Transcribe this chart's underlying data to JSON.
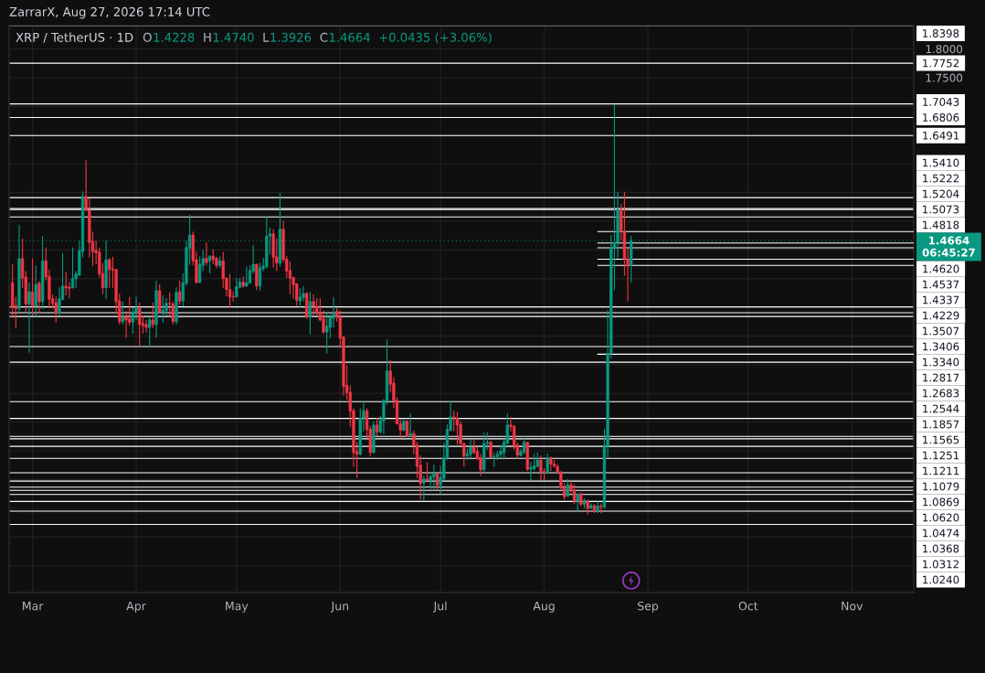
{
  "chart_data": {
    "type": "candlestick",
    "title": "XRP / TetherUS · 1D",
    "annotations": [
      "ZarrarX, Aug 27, 2026 17:14 UTC",
      "O1.4228",
      "H1.4740",
      "L1.3926",
      "C1.4664",
      "+0.0435 (+3.06%)"
    ],
    "x": [
      "2026-02-23",
      "2026-02-24",
      "2026-02-25",
      "2026-02-26",
      "2026-02-27",
      "2026-02-28",
      "2026-03-01",
      "2026-03-02",
      "2026-03-03",
      "2026-03-04",
      "2026-03-05",
      "2026-03-06",
      "2026-03-07",
      "2026-03-08",
      "2026-03-09",
      "2026-03-10",
      "2026-03-11",
      "2026-03-12",
      "2026-03-13",
      "2026-03-14",
      "2026-03-15",
      "2026-03-16",
      "2026-03-17",
      "2026-03-18",
      "2026-03-19",
      "2026-03-20",
      "2026-03-21",
      "2026-03-22",
      "2026-03-23",
      "2026-03-24",
      "2026-03-25",
      "2026-03-26",
      "2026-03-27",
      "2026-03-28",
      "2026-03-29",
      "2026-03-30",
      "2026-03-31",
      "2026-04-01",
      "2026-04-02",
      "2026-04-03",
      "2026-04-04",
      "2026-04-05",
      "2026-04-06",
      "2026-04-07",
      "2026-04-08",
      "2026-04-09",
      "2026-04-10",
      "2026-04-11",
      "2026-04-12",
      "2026-04-13",
      "2026-04-14",
      "2026-04-15",
      "2026-04-16",
      "2026-04-17",
      "2026-04-18",
      "2026-04-19",
      "2026-04-20",
      "2026-04-21",
      "2026-04-22",
      "2026-04-23",
      "2026-04-24",
      "2026-04-25",
      "2026-04-26",
      "2026-04-27",
      "2026-04-28",
      "2026-04-29",
      "2026-04-30",
      "2026-05-01",
      "2026-05-02",
      "2026-05-03",
      "2026-05-04",
      "2026-05-05",
      "2026-05-06",
      "2026-05-07",
      "2026-05-08",
      "2026-05-09",
      "2026-05-10",
      "2026-05-11",
      "2026-05-12",
      "2026-05-13",
      "2026-05-14",
      "2026-05-15",
      "2026-05-16",
      "2026-05-17",
      "2026-05-18",
      "2026-05-19",
      "2026-05-20",
      "2026-05-21",
      "2026-05-22",
      "2026-05-23",
      "2026-05-24",
      "2026-05-25",
      "2026-05-26",
      "2026-05-27",
      "2026-05-28",
      "2026-05-29",
      "2026-05-30",
      "2026-05-31",
      "2026-06-01",
      "2026-06-02",
      "2026-06-03",
      "2026-06-04",
      "2026-06-05",
      "2026-06-06",
      "2026-06-07",
      "2026-06-08",
      "2026-06-09",
      "2026-06-10",
      "2026-06-11",
      "2026-06-12",
      "2026-06-13",
      "2026-06-14",
      "2026-06-15",
      "2026-06-16",
      "2026-06-17",
      "2026-06-18",
      "2026-06-19",
      "2026-06-20",
      "2026-06-21",
      "2026-06-22",
      "2026-06-23",
      "2026-06-24",
      "2026-06-25",
      "2026-06-26",
      "2026-06-27",
      "2026-06-28",
      "2026-06-29",
      "2026-06-30",
      "2026-07-01",
      "2026-07-02",
      "2026-07-03",
      "2026-07-04",
      "2026-07-05",
      "2026-07-06",
      "2026-07-07",
      "2026-07-08",
      "2026-07-09",
      "2026-07-10",
      "2026-07-11",
      "2026-07-12",
      "2026-07-13",
      "2026-07-14",
      "2026-07-15",
      "2026-07-16",
      "2026-07-17",
      "2026-07-18",
      "2026-07-19",
      "2026-07-20",
      "2026-07-21",
      "2026-07-22",
      "2026-07-23",
      "2026-07-24",
      "2026-07-25",
      "2026-07-26",
      "2026-07-27",
      "2026-07-28",
      "2026-07-29",
      "2026-07-30",
      "2026-07-31",
      "2026-08-01",
      "2026-08-02",
      "2026-08-03",
      "2026-08-04",
      "2026-08-05",
      "2026-08-06",
      "2026-08-07",
      "2026-08-08",
      "2026-08-09",
      "2026-08-10",
      "2026-08-11",
      "2026-08-12",
      "2026-08-13",
      "2026-08-14",
      "2026-08-15",
      "2026-08-16",
      "2026-08-17",
      "2026-08-18",
      "2026-08-19",
      "2026-08-20",
      "2026-08-21",
      "2026-08-22",
      "2026-08-23",
      "2026-08-24",
      "2026-08-25",
      "2026-08-26",
      "2026-08-27"
    ],
    "ohlc": [
      [
        1.393,
        1.425,
        1.332,
        1.351
      ],
      [
        1.353,
        1.368,
        1.314,
        1.348
      ],
      [
        1.348,
        1.494,
        1.341,
        1.435
      ],
      [
        1.435,
        1.47,
        1.384,
        1.401
      ],
      [
        1.403,
        1.413,
        1.34,
        1.356
      ],
      [
        1.356,
        1.393,
        1.271,
        1.377
      ],
      [
        1.377,
        1.435,
        1.336,
        1.352
      ],
      [
        1.352,
        1.423,
        1.334,
        1.39
      ],
      [
        1.392,
        1.396,
        1.339,
        1.36
      ],
      [
        1.36,
        1.474,
        1.347,
        1.431
      ],
      [
        1.431,
        1.454,
        1.397,
        1.403
      ],
      [
        1.404,
        1.416,
        1.348,
        1.364
      ],
      [
        1.365,
        1.373,
        1.348,
        1.357
      ],
      [
        1.358,
        1.369,
        1.324,
        1.34
      ],
      [
        1.34,
        1.385,
        1.335,
        1.365
      ],
      [
        1.364,
        1.444,
        1.362,
        1.387
      ],
      [
        1.387,
        1.412,
        1.371,
        1.384
      ],
      [
        1.385,
        1.394,
        1.366,
        1.383
      ],
      [
        1.384,
        1.454,
        1.383,
        1.4
      ],
      [
        1.4,
        1.413,
        1.384,
        1.408
      ],
      [
        1.406,
        1.466,
        1.405,
        1.449
      ],
      [
        1.447,
        1.552,
        1.437,
        1.543
      ],
      [
        1.543,
        1.607,
        1.517,
        1.519
      ],
      [
        1.519,
        1.54,
        1.437,
        1.463
      ],
      [
        1.465,
        1.482,
        1.422,
        1.447
      ],
      [
        1.449,
        1.466,
        1.425,
        1.445
      ],
      [
        1.446,
        1.454,
        1.402,
        1.408
      ],
      [
        1.409,
        1.427,
        1.373,
        1.384
      ],
      [
        1.384,
        1.466,
        1.364,
        1.433
      ],
      [
        1.433,
        1.436,
        1.384,
        1.416
      ],
      [
        1.417,
        1.438,
        1.384,
        1.415
      ],
      [
        1.416,
        1.417,
        1.338,
        1.36
      ],
      [
        1.361,
        1.374,
        1.32,
        1.325
      ],
      [
        1.325,
        1.36,
        1.32,
        1.333
      ],
      [
        1.333,
        1.344,
        1.297,
        1.328
      ],
      [
        1.33,
        1.368,
        1.318,
        1.324
      ],
      [
        1.324,
        1.35,
        1.304,
        1.342
      ],
      [
        1.342,
        1.369,
        1.328,
        1.349
      ],
      [
        1.349,
        1.358,
        1.283,
        1.32
      ],
      [
        1.322,
        1.336,
        1.304,
        1.318
      ],
      [
        1.32,
        1.328,
        1.306,
        1.315
      ],
      [
        1.315,
        1.334,
        1.28,
        1.328
      ],
      [
        1.328,
        1.358,
        1.314,
        1.32
      ],
      [
        1.32,
        1.396,
        1.297,
        1.379
      ],
      [
        1.379,
        1.39,
        1.339,
        1.342
      ],
      [
        1.342,
        1.371,
        1.323,
        1.345
      ],
      [
        1.344,
        1.366,
        1.336,
        1.357
      ],
      [
        1.357,
        1.376,
        1.336,
        1.356
      ],
      [
        1.356,
        1.36,
        1.32,
        1.325
      ],
      [
        1.325,
        1.385,
        1.32,
        1.376
      ],
      [
        1.377,
        1.396,
        1.354,
        1.361
      ],
      [
        1.361,
        1.409,
        1.352,
        1.393
      ],
      [
        1.392,
        1.466,
        1.387,
        1.454
      ],
      [
        1.453,
        1.511,
        1.424,
        1.476
      ],
      [
        1.476,
        1.482,
        1.423,
        1.431
      ],
      [
        1.433,
        1.447,
        1.392,
        1.393
      ],
      [
        1.393,
        1.439,
        1.393,
        1.425
      ],
      [
        1.423,
        1.45,
        1.413,
        1.435
      ],
      [
        1.435,
        1.463,
        1.423,
        1.428
      ],
      [
        1.431,
        1.441,
        1.409,
        1.439
      ],
      [
        1.439,
        1.451,
        1.425,
        1.433
      ],
      [
        1.435,
        1.438,
        1.418,
        1.423
      ],
      [
        1.423,
        1.438,
        1.419,
        1.431
      ],
      [
        1.431,
        1.447,
        1.384,
        1.4
      ],
      [
        1.401,
        1.402,
        1.369,
        1.381
      ],
      [
        1.381,
        1.408,
        1.348,
        1.368
      ],
      [
        1.369,
        1.378,
        1.36,
        1.368
      ],
      [
        1.368,
        1.401,
        1.368,
        1.386
      ],
      [
        1.385,
        1.401,
        1.383,
        1.394
      ],
      [
        1.394,
        1.404,
        1.384,
        1.387
      ],
      [
        1.387,
        1.421,
        1.386,
        1.393
      ],
      [
        1.392,
        1.423,
        1.392,
        1.414
      ],
      [
        1.413,
        1.458,
        1.409,
        1.425
      ],
      [
        1.425,
        1.426,
        1.38,
        1.387
      ],
      [
        1.387,
        1.428,
        1.379,
        1.419
      ],
      [
        1.417,
        1.436,
        1.413,
        1.422
      ],
      [
        1.421,
        1.509,
        1.418,
        1.474
      ],
      [
        1.474,
        1.489,
        1.442,
        1.478
      ],
      [
        1.478,
        1.486,
        1.419,
        1.437
      ],
      [
        1.438,
        1.47,
        1.413,
        1.427
      ],
      [
        1.427,
        1.549,
        1.421,
        1.486
      ],
      [
        1.486,
        1.501,
        1.429,
        1.433
      ],
      [
        1.434,
        1.439,
        1.401,
        1.413
      ],
      [
        1.414,
        1.43,
        1.373,
        1.401
      ],
      [
        1.402,
        1.403,
        1.365,
        1.389
      ],
      [
        1.391,
        1.392,
        1.353,
        1.362
      ],
      [
        1.361,
        1.383,
        1.349,
        1.368
      ],
      [
        1.367,
        1.387,
        1.36,
        1.374
      ],
      [
        1.374,
        1.377,
        1.33,
        1.333
      ],
      [
        1.333,
        1.377,
        1.303,
        1.36
      ],
      [
        1.36,
        1.373,
        1.336,
        1.352
      ],
      [
        1.352,
        1.366,
        1.336,
        1.341
      ],
      [
        1.341,
        1.366,
        1.326,
        1.328
      ],
      [
        1.33,
        1.344,
        1.304,
        1.307
      ],
      [
        1.307,
        1.341,
        1.269,
        1.317
      ],
      [
        1.315,
        1.338,
        1.296,
        1.332
      ],
      [
        1.331,
        1.368,
        1.315,
        1.341
      ],
      [
        1.343,
        1.349,
        1.325,
        1.333
      ],
      [
        1.333,
        1.344,
        1.282,
        1.296
      ],
      [
        1.298,
        1.3,
        1.196,
        1.212
      ],
      [
        1.214,
        1.249,
        1.189,
        1.201
      ],
      [
        1.202,
        1.214,
        1.142,
        1.169
      ],
      [
        1.17,
        1.174,
        1.072,
        1.097
      ],
      [
        1.099,
        1.116,
        1.053,
        1.094
      ],
      [
        1.094,
        1.174,
        1.092,
        1.157
      ],
      [
        1.157,
        1.187,
        1.134,
        1.17
      ],
      [
        1.17,
        1.174,
        1.122,
        1.137
      ],
      [
        1.138,
        1.143,
        1.09,
        1.097
      ],
      [
        1.097,
        1.152,
        1.095,
        1.145
      ],
      [
        1.145,
        1.158,
        1.126,
        1.133
      ],
      [
        1.133,
        1.161,
        1.13,
        1.153
      ],
      [
        1.152,
        1.19,
        1.129,
        1.188
      ],
      [
        1.187,
        1.294,
        1.18,
        1.239
      ],
      [
        1.239,
        1.258,
        1.203,
        1.216
      ],
      [
        1.218,
        1.228,
        1.174,
        1.187
      ],
      [
        1.188,
        1.194,
        1.146,
        1.147
      ],
      [
        1.147,
        1.155,
        1.122,
        1.136
      ],
      [
        1.136,
        1.155,
        1.134,
        1.152
      ],
      [
        1.152,
        1.153,
        1.124,
        1.125
      ],
      [
        1.125,
        1.165,
        1.124,
        1.13
      ],
      [
        1.13,
        1.135,
        1.094,
        1.109
      ],
      [
        1.11,
        1.116,
        1.053,
        1.073
      ],
      [
        1.075,
        1.092,
        1.015,
        1.043
      ],
      [
        1.044,
        1.057,
        1.012,
        1.051
      ],
      [
        1.051,
        1.08,
        1.047,
        1.048
      ],
      [
        1.048,
        1.063,
        1.033,
        1.055
      ],
      [
        1.055,
        1.076,
        1.031,
        1.06
      ],
      [
        1.06,
        1.061,
        1.031,
        1.04
      ],
      [
        1.04,
        1.074,
        1.024,
        1.054
      ],
      [
        1.052,
        1.115,
        1.049,
        1.088
      ],
      [
        1.087,
        1.146,
        1.084,
        1.137
      ],
      [
        1.136,
        1.187,
        1.134,
        1.159
      ],
      [
        1.159,
        1.17,
        1.134,
        1.157
      ],
      [
        1.157,
        1.168,
        1.111,
        1.145
      ],
      [
        1.146,
        1.152,
        1.109,
        1.113
      ],
      [
        1.113,
        1.115,
        1.072,
        1.091
      ],
      [
        1.091,
        1.104,
        1.084,
        1.095
      ],
      [
        1.094,
        1.12,
        1.088,
        1.106
      ],
      [
        1.106,
        1.121,
        1.094,
        1.097
      ],
      [
        1.099,
        1.107,
        1.084,
        1.086
      ],
      [
        1.088,
        1.095,
        1.056,
        1.067
      ],
      [
        1.067,
        1.132,
        1.063,
        1.113
      ],
      [
        1.113,
        1.132,
        1.102,
        1.115
      ],
      [
        1.115,
        1.118,
        1.088,
        1.089
      ],
      [
        1.088,
        1.097,
        1.072,
        1.09
      ],
      [
        1.09,
        1.1,
        1.084,
        1.094
      ],
      [
        1.094,
        1.11,
        1.089,
        1.099
      ],
      [
        1.097,
        1.122,
        1.085,
        1.115
      ],
      [
        1.113,
        1.165,
        1.112,
        1.145
      ],
      [
        1.145,
        1.159,
        1.134,
        1.142
      ],
      [
        1.143,
        1.145,
        1.102,
        1.109
      ],
      [
        1.11,
        1.115,
        1.086,
        1.093
      ],
      [
        1.092,
        1.104,
        1.09,
        1.099
      ],
      [
        1.098,
        1.122,
        1.094,
        1.115
      ],
      [
        1.115,
        1.116,
        1.065,
        1.068
      ],
      [
        1.068,
        1.081,
        1.047,
        1.071
      ],
      [
        1.069,
        1.095,
        1.065,
        1.074
      ],
      [
        1.073,
        1.097,
        1.071,
        1.084
      ],
      [
        1.084,
        1.092,
        1.049,
        1.064
      ],
      [
        1.064,
        1.07,
        1.049,
        1.063
      ],
      [
        1.061,
        1.095,
        1.06,
        1.088
      ],
      [
        1.088,
        1.09,
        1.065,
        1.077
      ],
      [
        1.077,
        1.084,
        1.071,
        1.073
      ],
      [
        1.073,
        1.077,
        1.06,
        1.063
      ],
      [
        1.063,
        1.065,
        1.033,
        1.036
      ],
      [
        1.036,
        1.044,
        1.015,
        1.02
      ],
      [
        1.021,
        1.051,
        1.02,
        1.041
      ],
      [
        1.041,
        1.048,
        1.026,
        1.031
      ],
      [
        1.031,
        1.042,
        1.007,
        1.012
      ],
      [
        1.012,
        1.026,
        0.995,
        1.025
      ],
      [
        1.025,
        1.028,
        1.004,
        1.007
      ],
      [
        1.007,
        1.017,
        1.0,
        1.012
      ],
      [
        1.012,
        1.015,
        0.989,
        1.0
      ],
      [
        1.0,
        1.009,
        0.999,
        1.005
      ],
      [
        1.005,
        1.007,
        0.992,
        0.995
      ],
      [
        0.995,
        1.012,
        0.991,
        1.004
      ],
      [
        1.004,
        1.008,
        0.991,
        1.002
      ],
      [
        1.002,
        1.138,
        0.999,
        1.109
      ],
      [
        1.108,
        1.345,
        1.089,
        1.269
      ],
      [
        1.269,
        1.476,
        1.26,
        1.455
      ],
      [
        1.454,
        1.704,
        1.38,
        1.463
      ],
      [
        1.463,
        1.551,
        1.435,
        1.52
      ],
      [
        1.52,
        1.53,
        1.466,
        1.482
      ],
      [
        1.482,
        1.551,
        1.405,
        1.434
      ],
      [
        1.434,
        1.453,
        1.36,
        1.4228
      ],
      [
        1.4228,
        1.474,
        1.3926,
        1.4664
      ]
    ],
    "colors": [
      "#f23645",
      "#f23645",
      "#089981",
      "#f23645",
      "#f23645",
      "#089981",
      "#f23645",
      "#089981",
      "#f23645",
      "#089981",
      "#f23645",
      "#f23645",
      "#f23645",
      "#f23645",
      "#089981",
      "#089981",
      "#f23645",
      "#f23645",
      "#089981",
      "#089981",
      "#089981",
      "#089981",
      "#f23645",
      "#f23645",
      "#f23645",
      "#f23645",
      "#f23645",
      "#f23645",
      "#089981",
      "#f23645",
      "#f23645",
      "#f23645",
      "#f23645",
      "#089981",
      "#f23645",
      "#f23645",
      "#089981",
      "#089981",
      "#f23645",
      "#f23645",
      "#f23645",
      "#089981",
      "#f23645",
      "#089981",
      "#f23645",
      "#089981",
      "#089981",
      "#f23645",
      "#f23645",
      "#089981",
      "#f23645",
      "#089981",
      "#089981",
      "#089981",
      "#f23645",
      "#f23645",
      "#089981",
      "#089981",
      "#f23645",
      "#089981",
      "#f23645",
      "#f23645",
      "#089981",
      "#f23645",
      "#f23645",
      "#f23645",
      "#f23645",
      "#089981",
      "#089981",
      "#f23645",
      "#089981",
      "#089981",
      "#089981",
      "#f23645",
      "#089981",
      "#089981",
      "#089981",
      "#089981",
      "#f23645",
      "#f23645",
      "#089981",
      "#f23645",
      "#f23645",
      "#f23645",
      "#f23645",
      "#f23645",
      "#089981",
      "#089981",
      "#f23645",
      "#089981",
      "#f23645",
      "#f23645",
      "#f23645",
      "#f23645",
      "#089981",
      "#089981",
      "#089981",
      "#f23645",
      "#f23645",
      "#f23645",
      "#f23645",
      "#f23645",
      "#f23645",
      "#f23645",
      "#089981",
      "#089981",
      "#f23645",
      "#f23645",
      "#089981",
      "#f23645",
      "#089981",
      "#089981",
      "#089981",
      "#f23645",
      "#f23645",
      "#f23645",
      "#f23645",
      "#089981",
      "#f23645",
      "#089981",
      "#f23645",
      "#f23645",
      "#f23645",
      "#089981",
      "#f23645",
      "#089981",
      "#089981",
      "#f23645",
      "#089981",
      "#089981",
      "#089981",
      "#089981",
      "#f23645",
      "#f23645",
      "#f23645",
      "#f23645",
      "#089981",
      "#089981",
      "#f23645",
      "#f23645",
      "#f23645",
      "#089981",
      "#089981",
      "#f23645",
      "#089981",
      "#089981",
      "#089981",
      "#089981",
      "#089981",
      "#f23645",
      "#f23645",
      "#f23645",
      "#089981",
      "#089981",
      "#f23645",
      "#089981",
      "#089981",
      "#089981",
      "#f23645",
      "#f23645",
      "#089981",
      "#f23645",
      "#f23645",
      "#f23645",
      "#f23645",
      "#f23645",
      "#089981",
      "#f23645",
      "#f23645",
      "#089981",
      "#f23645",
      "#089981",
      "#f23645",
      "#089981",
      "#f23645",
      "#089981",
      "#f23645",
      "#089981",
      "#089981",
      "#089981",
      "#089981",
      "#089981",
      "#f23645",
      "#f23645",
      "#f23645",
      "#089981"
    ],
    "series": [
      {
        "type": "line",
        "name": "1.4818",
        "x": [
          "2026-08-17",
          "2026-11-19T12:00"
        ],
        "values": [
          1.4818,
          1.4818
        ],
        "color": "#ffffff"
      },
      {
        "type": "line",
        "name": "1.4620",
        "x": [
          "2026-08-17",
          "2026-11-19T12:00"
        ],
        "values": [
          1.462,
          1.462
        ],
        "color": "#ffffff"
      },
      {
        "type": "line",
        "name": "1.4537",
        "x": [
          "2026-08-17",
          "2026-11-19T12:00"
        ],
        "values": [
          1.4537,
          1.4537
        ],
        "color": "#ffffff"
      },
      {
        "type": "line",
        "name": "1.4337",
        "x": [
          "2026-08-17",
          "2026-11-19T12:00"
        ],
        "values": [
          1.4337,
          1.4337
        ],
        "color": "#ffffff"
      },
      {
        "type": "line",
        "name": "1.4229",
        "x": [
          "2026-08-17",
          "2026-11-19T12:00"
        ],
        "values": [
          1.4229,
          1.4229
        ],
        "color": "#ffffff"
      },
      {
        "type": "line",
        "name": "1.2683",
        "x": [
          "2026-08-17",
          "2026-11-19T12:00"
        ],
        "values": [
          1.2683,
          1.2683
        ],
        "color": "#ffffff"
      }
    ],
    "ref_lines": [
      {
        "axis": "y",
        "value": 1.8398,
        "label": "1.8398",
        "color": "#ffffff"
      },
      {
        "axis": "y",
        "value": 1.7752,
        "label": "1.7752",
        "color": "#ffffff"
      },
      {
        "axis": "y",
        "value": 1.7043,
        "label": "1.7043",
        "color": "#ffffff"
      },
      {
        "axis": "y",
        "value": 1.6806,
        "label": "1.6806",
        "color": "#ffffff"
      },
      {
        "axis": "y",
        "value": 1.6491,
        "label": "1.6491",
        "color": "#ffffff"
      },
      {
        "axis": "y",
        "value": 1.541,
        "label": "1.5410",
        "color": "#ffffff"
      },
      {
        "axis": "y",
        "value": 1.5222,
        "label": "1.5222",
        "color": "#ffffff"
      },
      {
        "axis": "y",
        "value": 1.5204,
        "label": "1.5204",
        "color": "#ffffff"
      },
      {
        "axis": "y",
        "value": 1.5073,
        "label": "1.5073",
        "color": "#ffffff"
      },
      {
        "axis": "y",
        "value": 1.4664,
        "label": "1.4664\n06:45:27",
        "color": "#089981",
        "line_style": "dotted"
      },
      {
        "axis": "y",
        "value": 1.3507,
        "label": "1.3507",
        "color": "#ffffff"
      },
      {
        "axis": "y",
        "value": 1.3406,
        "label": "1.3406",
        "color": "#ffffff"
      },
      {
        "axis": "y",
        "value": 1.334,
        "label": "1.3340",
        "color": "#ffffff"
      },
      {
        "axis": "y",
        "value": 1.2817,
        "label": "1.2817",
        "color": "#ffffff"
      },
      {
        "axis": "y",
        "value": 1.2544,
        "label": "1.2544",
        "color": "#ffffff"
      },
      {
        "axis": "y",
        "value": 1.1857,
        "label": "1.1857",
        "color": "#ffffff"
      },
      {
        "axis": "y",
        "value": 1.1565,
        "label": "1.1565",
        "color": "#ffffff"
      },
      {
        "axis": "y",
        "value": 1.1251,
        "label": "1.1251",
        "color": "#ffffff"
      },
      {
        "axis": "y",
        "value": 1.1211,
        "label": "1.1211",
        "color": "#ffffff"
      },
      {
        "axis": "y",
        "value": 1.1079,
        "label": "1.1079",
        "color": "#ffffff"
      },
      {
        "axis": "y",
        "value": 1.0869,
        "label": "1.0869",
        "color": "#ffffff"
      },
      {
        "axis": "y",
        "value": 1.062,
        "label": "1.0620",
        "color": "#ffffff"
      },
      {
        "axis": "y",
        "value": 1.0474,
        "label": "1.0474",
        "color": "#ffffff"
      },
      {
        "axis": "y",
        "value": 1.0368,
        "label": "1.0368",
        "color": "#ffffff"
      },
      {
        "axis": "y",
        "value": 1.0312,
        "label": "1.0312",
        "color": "#ffffff"
      },
      {
        "axis": "y",
        "value": 1.024,
        "label": "1.0240",
        "color": "#ffffff"
      },
      {
        "axis": "y",
        "value": 1.012,
        "color": "#ffffff"
      },
      {
        "axis": "y",
        "value": 0.995,
        "color": "#ffffff"
      },
      {
        "axis": "y",
        "value": 0.972,
        "color": "#ffffff"
      }
    ],
    "legend": "right",
    "xlim": [
      "2026-02-22",
      "2026-11-19T12:00"
    ],
    "xticks": [
      {
        "value": "2026-03-01",
        "label": "Mar"
      },
      {
        "value": "2026-04-01",
        "label": "Apr"
      },
      {
        "value": "2026-05-01",
        "label": "May"
      },
      {
        "value": "2026-06-01",
        "label": "Jun"
      },
      {
        "value": "2026-07-01",
        "label": "Jul"
      },
      {
        "value": "2026-08-01",
        "label": "Aug"
      },
      {
        "value": "2026-09-01",
        "label": "Sep"
      },
      {
        "value": "2026-10-01",
        "label": "Oct"
      },
      {
        "value": "2026-11-01",
        "label": "Nov"
      }
    ],
    "ylim": [
      0.8533,
      1.8406
    ],
    "yticks": [
      {
        "value": 0.9,
        "label": null
      },
      {
        "value": 0.95,
        "label": null
      },
      {
        "value": 1.0,
        "label": null
      },
      {
        "value": 1.05,
        "label": null
      },
      {
        "value": 1.1,
        "label": null
      },
      {
        "value": 1.15,
        "label": null
      },
      {
        "value": 1.2,
        "label": null
      },
      {
        "value": 1.25,
        "label": null
      },
      {
        "value": 1.3,
        "label": null
      },
      {
        "value": 1.35,
        "label": null
      },
      {
        "value": 1.4,
        "label": null
      },
      {
        "value": 1.45,
        "label": null
      },
      {
        "value": 1.5,
        "label": null
      },
      {
        "value": 1.55,
        "label": null
      },
      {
        "value": 1.6,
        "label": null
      },
      {
        "value": 1.65,
        "label": null
      },
      {
        "value": 1.7,
        "label": null
      },
      {
        "value": 1.75,
        "label": "1.7500"
      },
      {
        "value": 1.8,
        "label": "1.8000"
      }
    ],
    "grid": true
  }
}
